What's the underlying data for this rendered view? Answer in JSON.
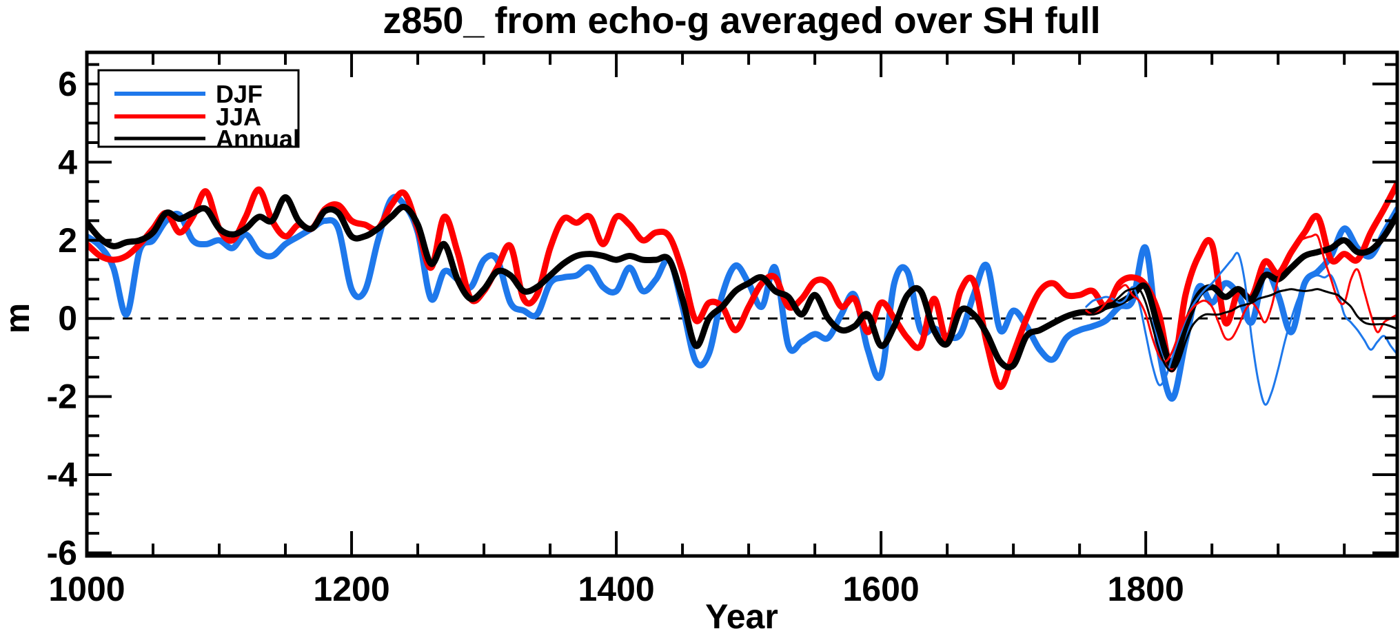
{
  "page": {
    "background": "#FFFFFF"
  },
  "chart_data": {
    "type": "line",
    "title": "z850_ from echo-g averaged over SH full",
    "xlabel": "Year",
    "ylabel": "m",
    "xlim": [
      1000,
      1990
    ],
    "ylim": [
      -6.08,
      6.81
    ],
    "x_major_ticks": [
      1000,
      1200,
      1400,
      1600,
      1800
    ],
    "x_tick_labels": [
      "1000",
      "1200",
      "1400",
      "1600",
      "1800"
    ],
    "x_minor_step": 50,
    "y_major_ticks": [
      -6,
      -4,
      -2,
      0,
      2,
      4,
      6
    ],
    "y_tick_labels": [
      "-6",
      "-4",
      "-2",
      "0",
      "2",
      "4",
      "6"
    ],
    "y_minor_step": 0.5,
    "grid": false,
    "zero_line": {
      "style": "dashed",
      "color": "#000000"
    },
    "legend": {
      "position": "top-left",
      "entries": [
        {
          "label": "DJF",
          "color": "#1E78EB"
        },
        {
          "label": "JJA",
          "color": "#FF0000"
        },
        {
          "label": "Annual",
          "color": "#000000"
        }
      ]
    },
    "series": [
      {
        "name": "DJF",
        "style": "thick",
        "color": "#1E78EB",
        "stroke_width": 9,
        "x_start": 1000,
        "x_step": 10,
        "values": [
          2.1,
          1.85,
          1.3,
          0.1,
          1.75,
          2.0,
          2.5,
          2.65,
          2.0,
          1.9,
          2.0,
          1.8,
          2.15,
          1.7,
          1.6,
          1.9,
          2.1,
          2.3,
          2.5,
          2.3,
          0.75,
          0.7,
          2.0,
          3.05,
          2.9,
          2.2,
          0.5,
          1.2,
          1.0,
          0.8,
          1.5,
          1.5,
          0.4,
          0.2,
          0.1,
          0.9,
          1.05,
          1.1,
          1.3,
          0.8,
          0.7,
          1.3,
          0.7,
          1.0,
          1.5,
          0.3,
          -1.1,
          -0.9,
          0.6,
          1.35,
          0.9,
          0.3,
          1.3,
          -0.7,
          -0.6,
          -0.4,
          -0.5,
          0.1,
          0.6,
          -0.8,
          -1.45,
          0.9,
          1.2,
          -0.3,
          -0.25,
          -0.45,
          -0.4,
          0.6,
          1.35,
          -0.3,
          0.2,
          -0.2,
          -0.8,
          -1.05,
          -0.5,
          -0.3,
          -0.2,
          -0.05,
          0.3,
          0.45,
          1.8,
          -0.8,
          -2.05,
          -0.6,
          0.8,
          0.4,
          0.9,
          0.6,
          -0.1,
          1.2,
          0.6,
          -0.35,
          0.9,
          1.2,
          1.6,
          2.3,
          1.8,
          1.6,
          2.2,
          2.8
        ]
      },
      {
        "name": "JJA",
        "style": "thick",
        "color": "#FF0000",
        "stroke_width": 9,
        "x_start": 1000,
        "x_step": 10,
        "values": [
          1.9,
          1.6,
          1.5,
          1.6,
          1.9,
          2.3,
          2.7,
          2.2,
          2.6,
          3.25,
          2.3,
          2.0,
          2.6,
          3.3,
          2.5,
          2.1,
          2.4,
          2.3,
          2.8,
          2.9,
          2.5,
          2.4,
          2.3,
          2.9,
          3.2,
          2.3,
          1.3,
          2.6,
          1.7,
          0.5,
          0.7,
          1.3,
          1.85,
          0.5,
          0.6,
          1.8,
          2.55,
          2.45,
          2.6,
          1.9,
          2.6,
          2.4,
          2.0,
          2.2,
          2.1,
          1.2,
          -0.05,
          0.4,
          0.3,
          -0.3,
          0.3,
          0.9,
          1.05,
          0.3,
          0.5,
          0.95,
          0.9,
          0.3,
          0.5,
          -0.35,
          0.4,
          0.0,
          -0.5,
          -0.7,
          0.5,
          -0.55,
          0.7,
          0.95,
          -0.65,
          -1.75,
          -0.9,
          0.0,
          0.7,
          0.9,
          0.6,
          0.6,
          0.7,
          0.3,
          0.9,
          1.05,
          0.85,
          0.1,
          -1.3,
          0.6,
          1.6,
          1.9,
          -0.1,
          0.7,
          0.55,
          1.45,
          1.15,
          1.7,
          2.2,
          2.6,
          1.5,
          1.65,
          1.5,
          2.2,
          2.8,
          3.45
        ]
      },
      {
        "name": "Annual",
        "style": "thick",
        "color": "#000000",
        "stroke_width": 9,
        "x_start": 1000,
        "x_step": 10,
        "values": [
          2.45,
          2.05,
          1.85,
          1.95,
          2.0,
          2.2,
          2.7,
          2.55,
          2.7,
          2.8,
          2.3,
          2.15,
          2.3,
          2.6,
          2.5,
          3.1,
          2.5,
          2.3,
          2.75,
          2.7,
          2.1,
          2.1,
          2.3,
          2.6,
          2.85,
          2.4,
          1.4,
          1.9,
          1.0,
          0.5,
          0.75,
          1.2,
          1.1,
          0.7,
          0.8,
          1.1,
          1.4,
          1.6,
          1.65,
          1.6,
          1.5,
          1.6,
          1.5,
          1.5,
          1.5,
          0.5,
          -0.7,
          0.0,
          0.3,
          0.7,
          0.9,
          1.05,
          0.7,
          0.55,
          0.1,
          0.6,
          0.0,
          -0.3,
          -0.2,
          0.1,
          -0.7,
          -0.2,
          0.6,
          0.7,
          -0.3,
          -0.65,
          0.2,
          0.1,
          -0.4,
          -1.1,
          -1.2,
          -0.45,
          -0.3,
          -0.12,
          0.05,
          0.15,
          0.18,
          0.3,
          0.4,
          0.6,
          0.8,
          -0.3,
          -1.2,
          -0.2,
          0.6,
          0.8,
          0.55,
          0.75,
          0.5,
          1.1,
          1.0,
          1.3,
          1.6,
          1.7,
          1.8,
          2.0,
          1.7,
          1.75,
          2.1,
          2.65
        ]
      },
      {
        "name": "DJF thin",
        "style": "thin",
        "color": "#1E78EB",
        "stroke_width": 3,
        "x_start": 1755,
        "x_step": 5,
        "values": [
          0.3,
          0.45,
          0.5,
          0.55,
          0.5,
          0.4,
          0.5,
          0.8,
          0.4,
          -0.4,
          -1.2,
          -1.7,
          -1.5,
          -1.0,
          -0.5,
          -0.05,
          0.3,
          0.55,
          0.75,
          0.9,
          1.1,
          1.3,
          1.5,
          1.65,
          0.9,
          -0.5,
          -1.6,
          -2.2,
          -1.9,
          -1.3,
          -0.6,
          0.0,
          0.5,
          0.85,
          1.05,
          1.1,
          1.05,
          1.1,
          0.7,
          0.1,
          -0.1,
          -0.3,
          -0.55,
          -0.8,
          -0.6,
          -0.45,
          -0.7,
          -0.92
        ]
      },
      {
        "name": "JJA thin",
        "style": "thin",
        "color": "#FF0000",
        "stroke_width": 3,
        "x_start": 1755,
        "x_step": 5,
        "values": [
          0.2,
          0.1,
          0.2,
          0.4,
          0.6,
          0.75,
          0.85,
          0.6,
          0.45,
          0.1,
          -0.5,
          -0.95,
          -1.1,
          -0.85,
          -0.4,
          0.0,
          0.25,
          0.4,
          0.45,
          0.3,
          -0.1,
          -0.5,
          -0.5,
          -0.2,
          0.2,
          0.4,
          0.2,
          -0.1,
          0.3,
          1.0,
          1.4,
          1.7,
          1.95,
          2.05,
          2.1,
          2.1,
          1.5,
          1.0,
          0.5,
          0.4,
          1.0,
          1.25,
          0.7,
          0.1,
          -0.35,
          -0.1,
          0.0,
          0.1
        ]
      },
      {
        "name": "Annual thin",
        "style": "thin",
        "color": "#000000",
        "stroke_width": 3,
        "x_start": 1755,
        "x_step": 5,
        "values": [
          0.1,
          0.1,
          0.15,
          0.25,
          0.4,
          0.55,
          0.7,
          0.75,
          0.75,
          0.4,
          -0.2,
          -0.8,
          -1.2,
          -1.35,
          -1.1,
          -0.6,
          -0.2,
          0.0,
          0.1,
          0.1,
          0.1,
          0.15,
          0.2,
          0.3,
          0.35,
          0.4,
          0.5,
          0.55,
          0.6,
          0.68,
          0.72,
          0.75,
          0.72,
          0.7,
          0.72,
          0.75,
          0.7,
          0.65,
          0.6,
          0.45,
          0.3,
          0.05,
          -0.1,
          -0.15,
          -0.15,
          -0.15,
          -0.2,
          -0.27
        ]
      }
    ]
  }
}
